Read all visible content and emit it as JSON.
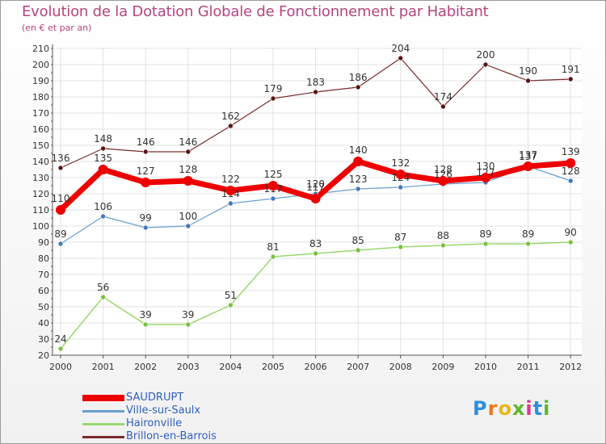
{
  "chart_data": {
    "type": "line",
    "title": "Evolution de la Dotation Globale de Fonctionnement par Habitant",
    "subtitle": "(en € et par an)",
    "xlabel": "",
    "ylabel": "",
    "ylim": [
      20,
      210
    ],
    "yticks": [
      20,
      30,
      40,
      50,
      60,
      70,
      80,
      90,
      100,
      110,
      120,
      130,
      140,
      150,
      160,
      170,
      180,
      190,
      200,
      210
    ],
    "grid": true,
    "legend_position": "bottom-left",
    "categories": [
      "2000",
      "2001",
      "2002",
      "2003",
      "2004",
      "2005",
      "2006",
      "2007",
      "2008",
      "2009",
      "2010",
      "2011",
      "2012"
    ],
    "series": [
      {
        "name": "Brillon-en-Barrois",
        "color": "#7b2a2a",
        "marker": "#5a1414",
        "width": 1.2,
        "radius": 3,
        "values": [
          136,
          148,
          146,
          146,
          162,
          179,
          183,
          186,
          204,
          174,
          200,
          190,
          191
        ]
      },
      {
        "name": "Haironville",
        "color": "#9ad86e",
        "marker": "#7ac040",
        "width": 1.5,
        "radius": 3,
        "values": [
          24,
          56,
          39,
          39,
          51,
          81,
          83,
          85,
          87,
          88,
          89,
          89,
          90
        ]
      },
      {
        "name": "Ville-sur-Saulx",
        "color": "#6a9fd0",
        "marker": "#4478b8",
        "width": 1.2,
        "radius": 3,
        "values": [
          89,
          106,
          99,
          100,
          114,
          117,
          120,
          123,
          124,
          126,
          127,
          137,
          128
        ]
      },
      {
        "name": "SAUDRUPT",
        "color": "#ee0000",
        "marker": "#ee0000",
        "width": 7,
        "radius": 6,
        "values": [
          110,
          135,
          127,
          128,
          122,
          125,
          117,
          140,
          132,
          128,
          130,
          137,
          139
        ]
      }
    ]
  },
  "legend": [
    "SAUDRUPT",
    "Ville-sur-Saulx",
    "Haironville",
    "Brillon-en-Barrois"
  ],
  "legend_colors": [
    "#ee0000",
    "#6a9fd0",
    "#9ad86e",
    "#7b2a2a"
  ],
  "brand": {
    "letters": [
      "P",
      "r",
      "o",
      "x",
      "i",
      "t",
      "i"
    ],
    "colors": [
      "#2e8fd8",
      "#e8781e",
      "#e8b818",
      "#5cb830",
      "#d83c8c",
      "#2e8fd8",
      "#5cb830"
    ]
  }
}
